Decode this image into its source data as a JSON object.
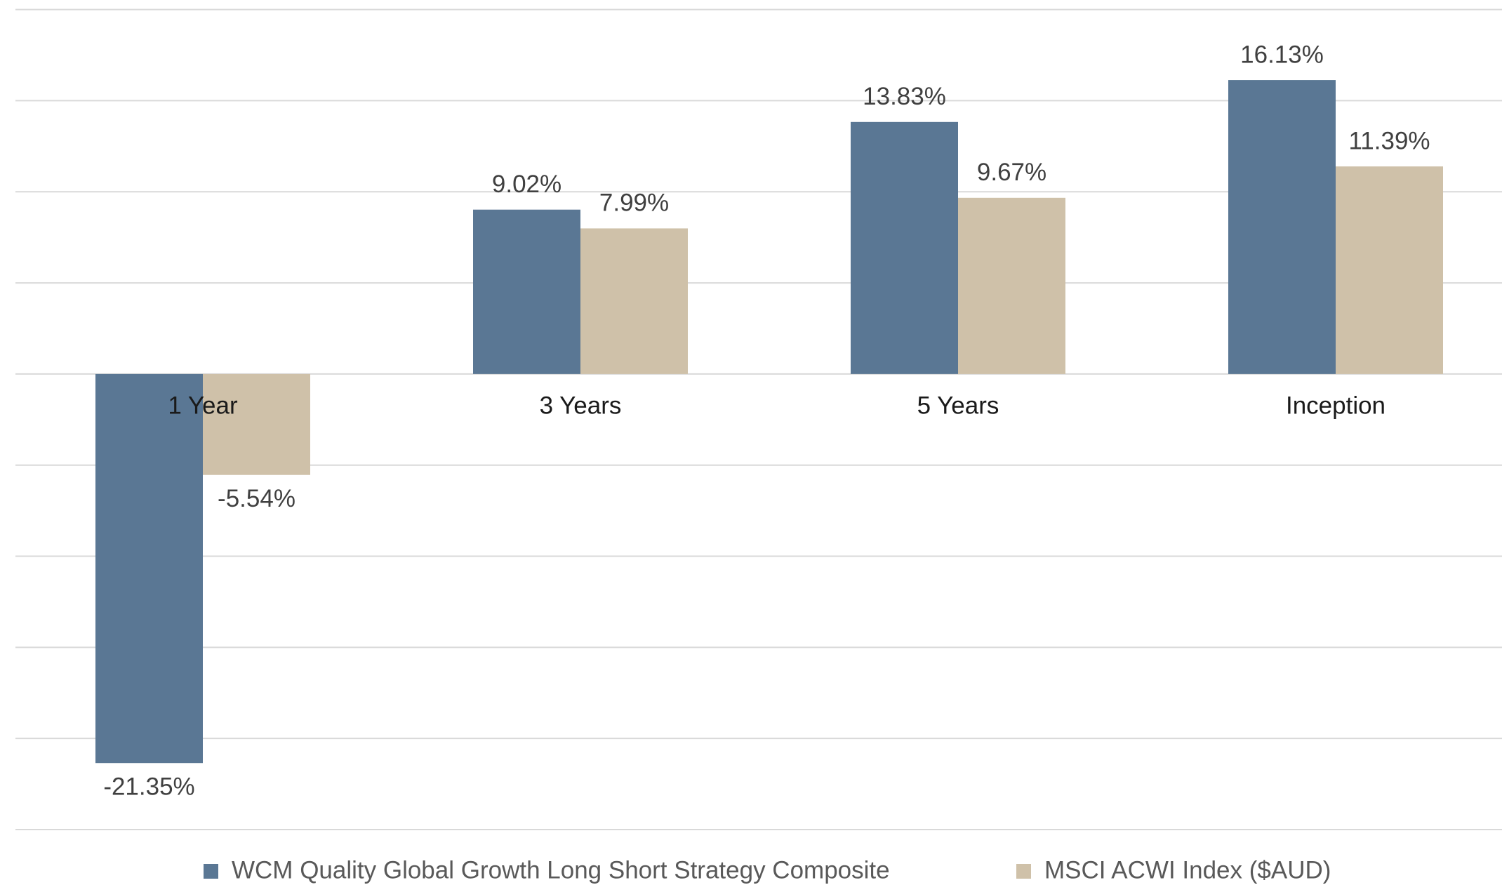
{
  "chart_data": {
    "type": "bar",
    "categories": [
      "1 Year",
      "3 Years",
      "5 Years",
      "Inception"
    ],
    "series": [
      {
        "name": "WCM Quality Global Growth Long Short Strategy Composite",
        "color": "#5a7794",
        "values": [
          -21.35,
          9.02,
          13.83,
          16.13
        ],
        "value_labels": [
          "-21.35%",
          "9.02%",
          "13.83%",
          "16.13%"
        ]
      },
      {
        "name": "MSCI ACWI Index ($AUD)",
        "color": "#cfc1a9",
        "values": [
          -5.54,
          7.99,
          9.67,
          11.39
        ],
        "value_labels": [
          "-5.54%",
          "7.99%",
          "9.67%",
          "11.39%"
        ]
      }
    ],
    "ylim": [
      -25,
      20
    ],
    "yticks": [
      -25,
      -20,
      -15,
      -10,
      -5,
      0,
      5,
      10,
      15,
      20
    ],
    "grid": true
  }
}
